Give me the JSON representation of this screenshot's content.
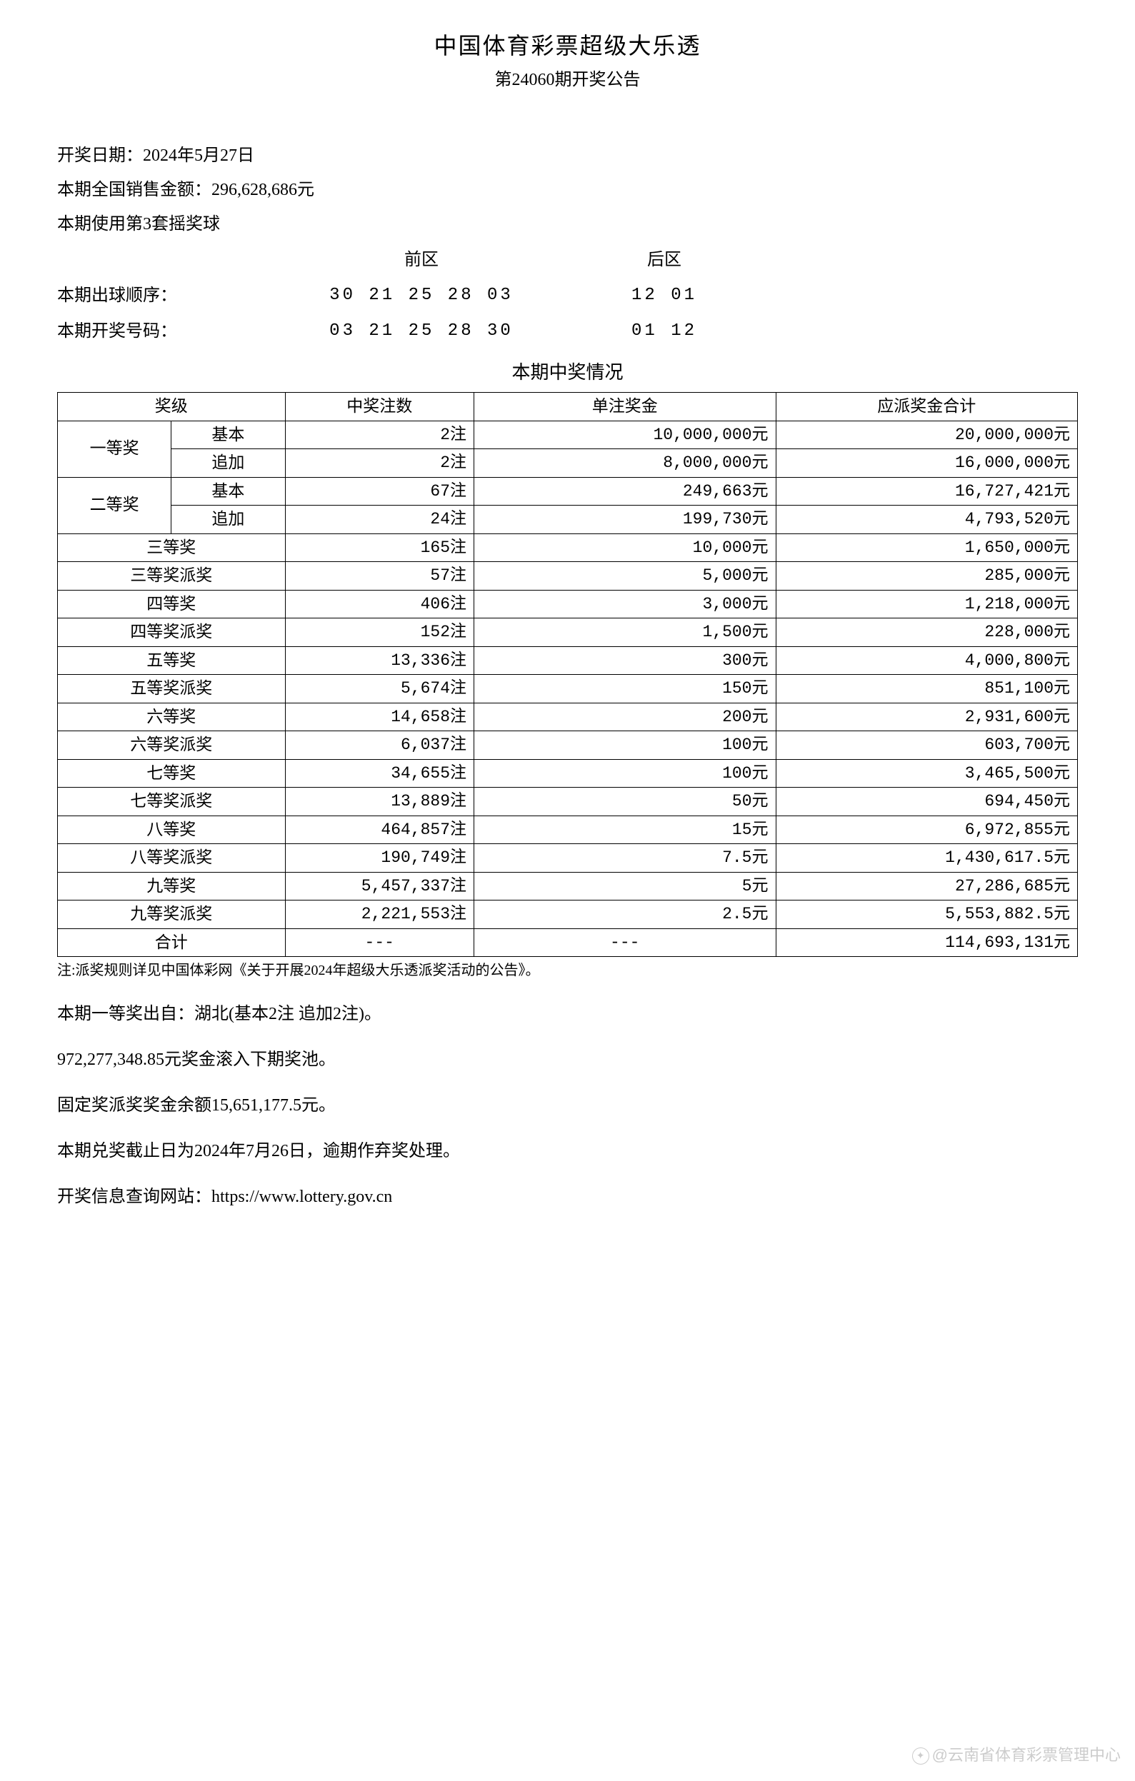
{
  "header": {
    "title": "中国体育彩票超级大乐透",
    "subtitle": "第24060期开奖公告"
  },
  "info": {
    "draw_date_label": "开奖日期：",
    "draw_date": "2024年5月27日",
    "sales_label": "本期全国销售金额：",
    "sales_amount": "296,628,686元",
    "ballset_label": "本期使用第3套摇奖球"
  },
  "numbers": {
    "front_label": "前区",
    "back_label": "后区",
    "draw_order_label": "本期出球顺序：",
    "draw_order_front": "30 21 25 28 03",
    "draw_order_back": "12 01",
    "winning_label": "本期开奖号码：",
    "winning_front": "03 21 25 28 30",
    "winning_back": "01 12"
  },
  "results": {
    "section_title": "本期中奖情况",
    "columns": {
      "level": "奖级",
      "count": "中奖注数",
      "per": "单注奖金",
      "total": "应派奖金合计"
    },
    "grouped": [
      {
        "level": "一等奖",
        "sub": [
          {
            "name": "基本",
            "count": "2注",
            "per": "10,000,000元",
            "total": "20,000,000元"
          },
          {
            "name": "追加",
            "count": "2注",
            "per": "8,000,000元",
            "total": "16,000,000元"
          }
        ]
      },
      {
        "level": "二等奖",
        "sub": [
          {
            "name": "基本",
            "count": "67注",
            "per": "249,663元",
            "total": "16,727,421元"
          },
          {
            "name": "追加",
            "count": "24注",
            "per": "199,730元",
            "total": "4,793,520元"
          }
        ]
      }
    ],
    "rows": [
      {
        "level": "三等奖",
        "count": "165注",
        "per": "10,000元",
        "total": "1,650,000元"
      },
      {
        "level": "三等奖派奖",
        "count": "57注",
        "per": "5,000元",
        "total": "285,000元"
      },
      {
        "level": "四等奖",
        "count": "406注",
        "per": "3,000元",
        "total": "1,218,000元"
      },
      {
        "level": "四等奖派奖",
        "count": "152注",
        "per": "1,500元",
        "total": "228,000元"
      },
      {
        "level": "五等奖",
        "count": "13,336注",
        "per": "300元",
        "total": "4,000,800元"
      },
      {
        "level": "五等奖派奖",
        "count": "5,674注",
        "per": "150元",
        "total": "851,100元"
      },
      {
        "level": "六等奖",
        "count": "14,658注",
        "per": "200元",
        "total": "2,931,600元"
      },
      {
        "level": "六等奖派奖",
        "count": "6,037注",
        "per": "100元",
        "total": "603,700元"
      },
      {
        "level": "七等奖",
        "count": "34,655注",
        "per": "100元",
        "total": "3,465,500元"
      },
      {
        "level": "七等奖派奖",
        "count": "13,889注",
        "per": "50元",
        "total": "694,450元"
      },
      {
        "level": "八等奖",
        "count": "464,857注",
        "per": "15元",
        "total": "6,972,855元"
      },
      {
        "level": "八等奖派奖",
        "count": "190,749注",
        "per": "7.5元",
        "total": "1,430,617.5元"
      },
      {
        "level": "九等奖",
        "count": "5,457,337注",
        "per": "5元",
        "total": "27,286,685元"
      },
      {
        "level": "九等奖派奖",
        "count": "2,221,553注",
        "per": "2.5元",
        "total": "5,553,882.5元"
      }
    ],
    "total_row": {
      "level": "合计",
      "count": "---",
      "per": "---",
      "total": "114,693,131元"
    }
  },
  "note": "注:派奖规则详见中国体彩网《关于开展2024年超级大乐透派奖活动的公告》。",
  "footer": {
    "line1": "本期一等奖出自：湖北(基本2注 追加2注)。",
    "line2": "972,277,348.85元奖金滚入下期奖池。",
    "line3": "固定奖派奖奖金余额15,651,177.5元。",
    "line4": "本期兑奖截止日为2024年7月26日，逾期作弃奖处理。",
    "line5": "开奖信息查询网站：https://www.lottery.gov.cn"
  },
  "watermark": "@云南省体育彩票管理中心"
}
